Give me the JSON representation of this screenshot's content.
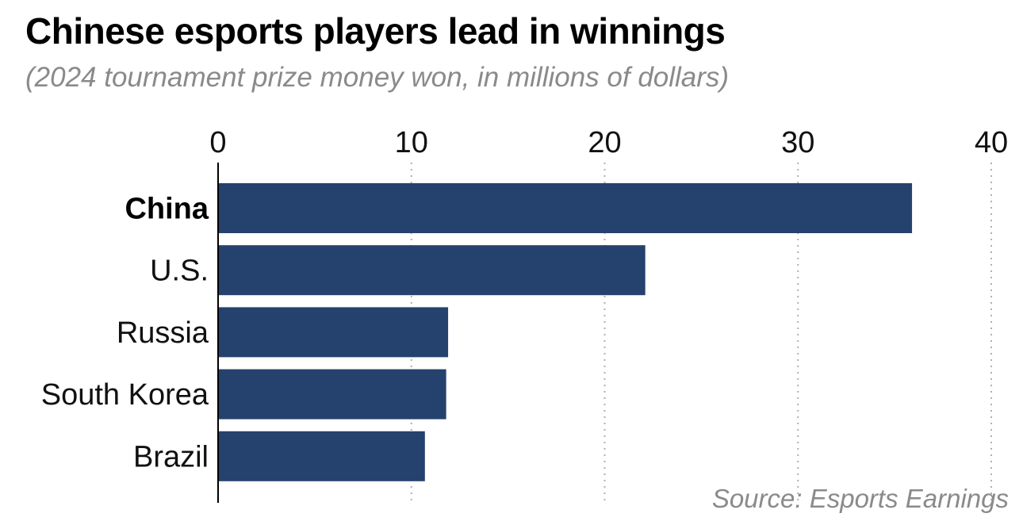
{
  "header": {
    "title": "Chinese esports players lead in winnings",
    "subtitle": "(2024 tournament prize money won, in millions of dollars)"
  },
  "footer": {
    "source": "Source: Esports Earnings"
  },
  "colors": {
    "bar": "#25426e",
    "grid": "#b0b0b0",
    "axis": "#000000",
    "muted_text": "#8a8a8a"
  },
  "chart_data": {
    "type": "bar",
    "orientation": "horizontal",
    "categories": [
      "China",
      "U.S.",
      "Russia",
      "South Korea",
      "Brazil"
    ],
    "highlighted_category": "China",
    "values": [
      35.9,
      22.1,
      11.9,
      11.8,
      10.7
    ],
    "xlim": [
      0,
      40
    ],
    "x_ticks": [
      0,
      10,
      20,
      30,
      40
    ],
    "x_axis_position": "top",
    "grid": "vertical dotted",
    "title": "Chinese esports players lead in winnings",
    "subtitle": "(2024 tournament prize money won, in millions of dollars)",
    "source": "Source: Esports Earnings"
  }
}
